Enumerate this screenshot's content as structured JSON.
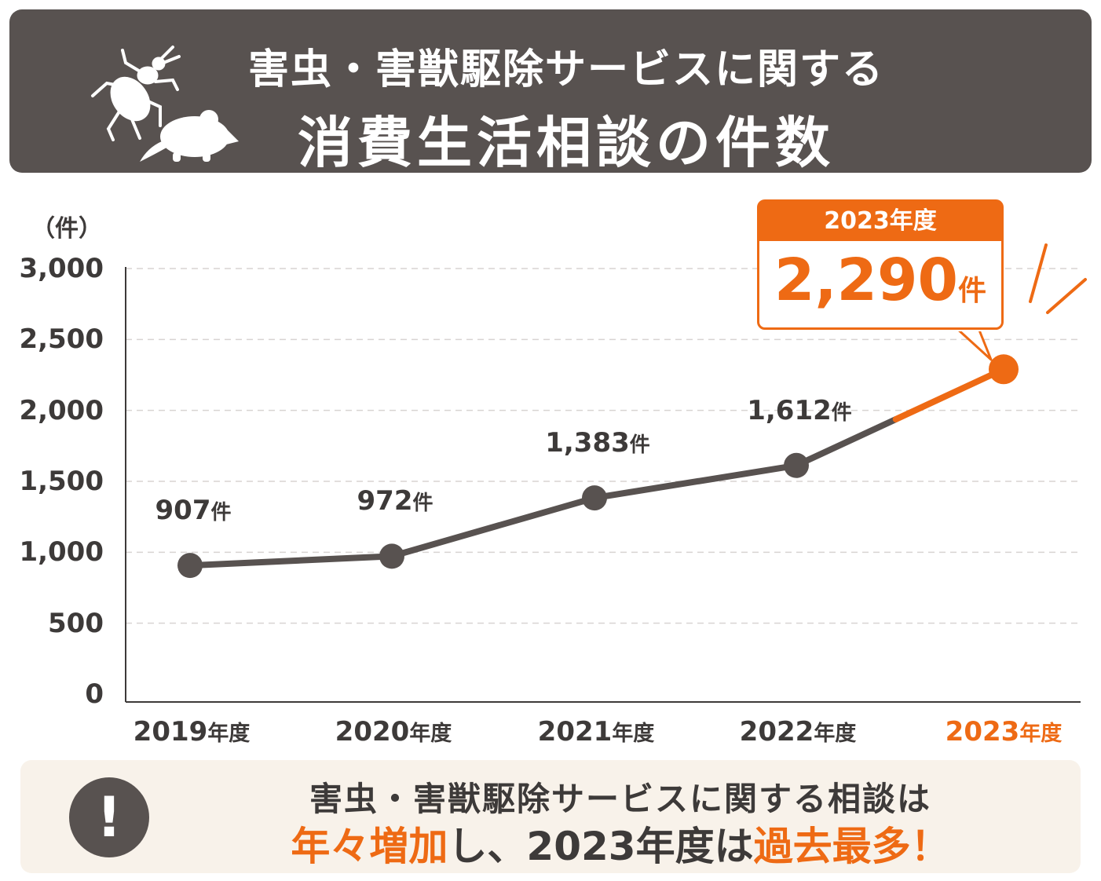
{
  "header": {
    "line1": "害虫・害獣駆除サービスに関する",
    "line2": "消費生活相談の件数",
    "icon": "insect-and-mouse-icon"
  },
  "chart_data": {
    "type": "line",
    "unit_label": "（件）",
    "categories": [
      "2019年度",
      "2020年度",
      "2021年度",
      "2022年度",
      "2023年度"
    ],
    "years": [
      "2019",
      "2020",
      "2021",
      "2022",
      "2023"
    ],
    "year_suffix": "年度",
    "values": [
      907,
      972,
      1383,
      1612,
      2290
    ],
    "value_numbers": [
      "907",
      "972",
      "1,383",
      "1,612"
    ],
    "value_suffix": "件",
    "ylim": [
      0,
      3000
    ],
    "yticks": [
      "0",
      "500",
      "1,000",
      "1,500",
      "2,000",
      "2,500",
      "3,000"
    ],
    "grid": true,
    "highlight_index": 4,
    "colors": {
      "line": "#585250",
      "highlight": "#ee6a14",
      "grid": "#d8d4d2"
    }
  },
  "callout": {
    "label": "2023年度",
    "value": "2,290",
    "suffix": "件"
  },
  "summary": {
    "line1": "害虫・害獣駆除サービスに関する相談は",
    "line2_part1": "年々増加",
    "line2_part2": "し、2023年度は",
    "line2_part3": "過去最多！",
    "icon": "exclamation-icon"
  }
}
